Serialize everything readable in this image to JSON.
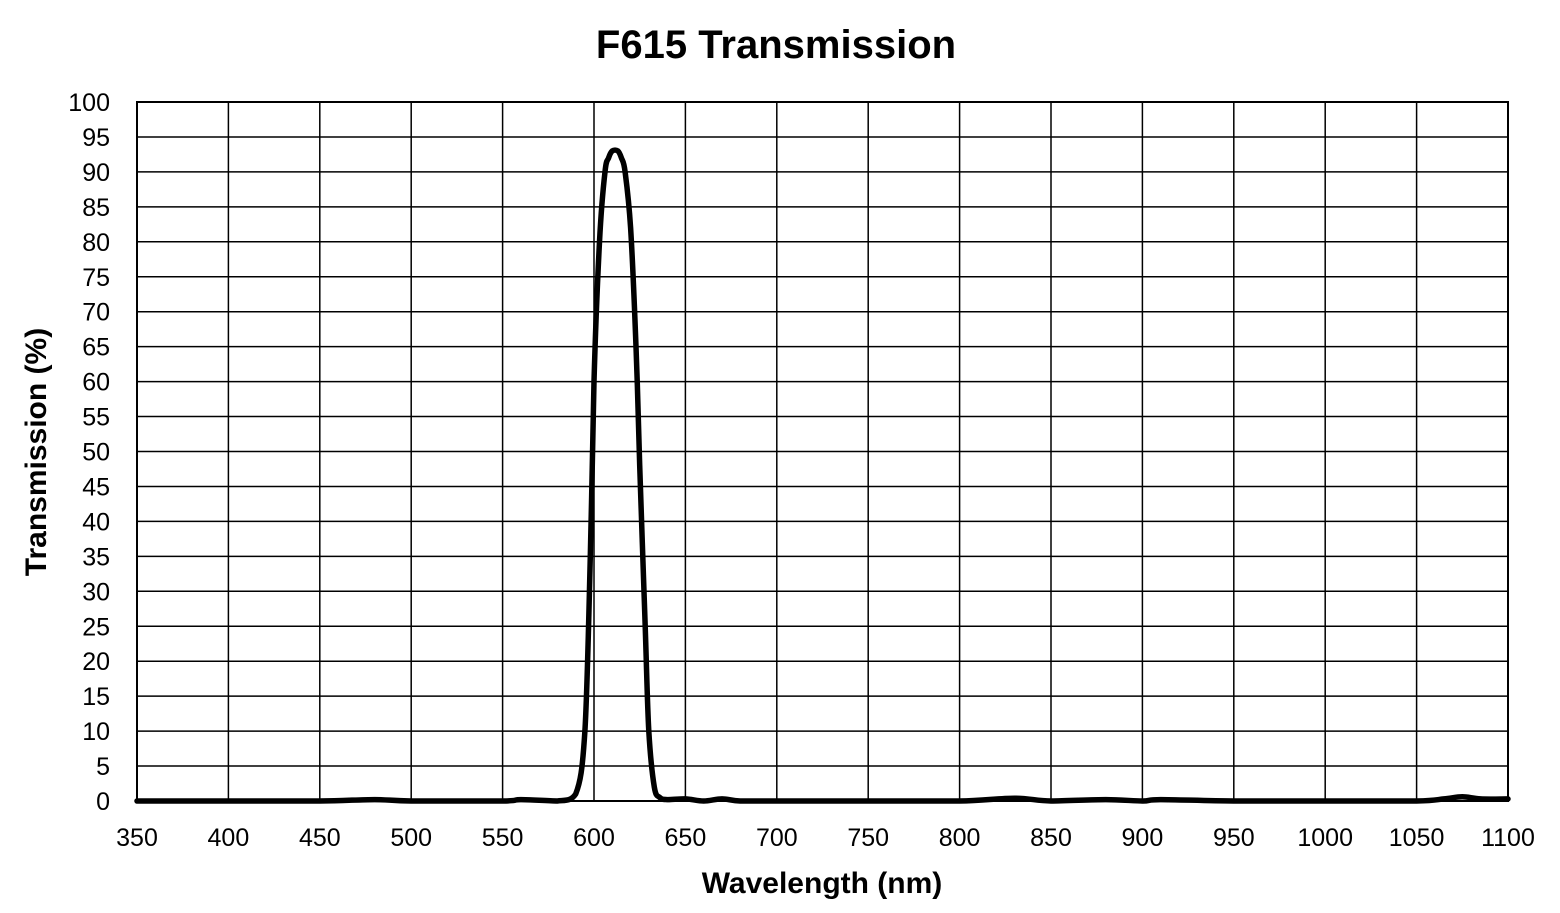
{
  "chart_data": {
    "type": "line",
    "title": "F615 Transmission",
    "xlabel": "Wavelength (nm)",
    "ylabel": "Transmission (%)",
    "xlim": [
      350,
      1100
    ],
    "ylim": [
      0,
      100
    ],
    "x_ticks": [
      "350",
      "400",
      "450",
      "500",
      "550",
      "600",
      "650",
      "700",
      "750",
      "800",
      "850",
      "900",
      "950",
      "1000",
      "1050",
      "1100"
    ],
    "y_ticks": [
      "0",
      "5",
      "10",
      "15",
      "20",
      "25",
      "30",
      "35",
      "40",
      "45",
      "50",
      "55",
      "60",
      "65",
      "70",
      "75",
      "80",
      "85",
      "90",
      "95",
      "100"
    ],
    "grid": true,
    "line_color": "#000000",
    "series": [
      {
        "x": [
          350,
          400,
          450,
          480,
          500,
          550,
          560,
          580,
          590,
          595,
          598,
          600,
          603,
          606,
          608,
          610,
          613,
          615,
          617,
          620,
          623,
          625,
          628,
          630,
          633,
          636,
          640,
          650,
          660,
          670,
          680,
          700,
          750,
          800,
          830,
          850,
          880,
          900,
          910,
          950,
          1000,
          1050,
          1065,
          1075,
          1085,
          1100
        ],
        "y": [
          0,
          0,
          0,
          0.2,
          0,
          0,
          0.2,
          0,
          1,
          10,
          35,
          60,
          80,
          90,
          92,
          93,
          93,
          92,
          90,
          82,
          65,
          48,
          25,
          10,
          2,
          0.5,
          0.2,
          0.3,
          0,
          0.3,
          0,
          0,
          0,
          0,
          0.4,
          0,
          0.2,
          0,
          0.2,
          0,
          0,
          0,
          0.3,
          0.6,
          0.3,
          0.3
        ]
      }
    ]
  }
}
